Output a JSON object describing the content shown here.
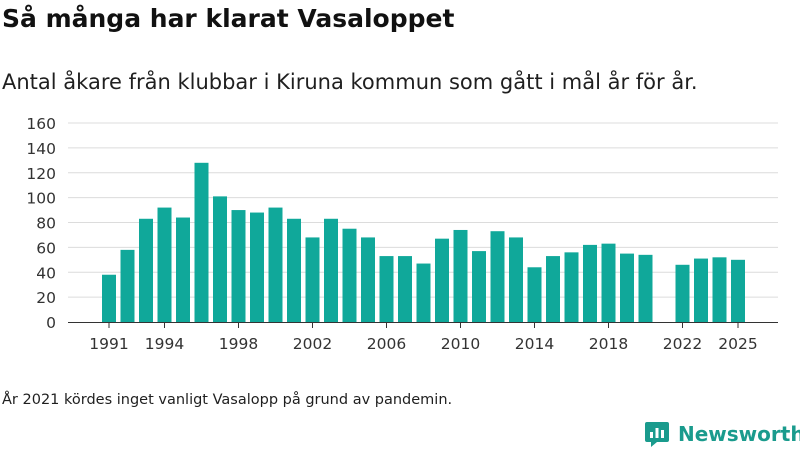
{
  "header": {
    "title": "Så många har klarat Vasaloppet",
    "subtitle": "Antal åkare från klubbar i Kiruna kommun som gått i mål år för år."
  },
  "footnote": "År 2021 kördes inget vanligt Vasalopp på grund av pandemin.",
  "brand": {
    "name": "Newsworthy",
    "icon": "newsworthy-logo-icon",
    "color": "#1a9b8d"
  },
  "chart_data": {
    "type": "bar",
    "title": "Så många har klarat Vasaloppet",
    "subtitle": "Antal åkare från klubbar i Kiruna kommun som gått i mål år för år.",
    "xlabel": "",
    "ylabel": "",
    "x": [
      1991,
      1992,
      1993,
      1994,
      1995,
      1996,
      1997,
      1998,
      1999,
      2000,
      2001,
      2002,
      2003,
      2004,
      2005,
      2006,
      2007,
      2008,
      2009,
      2010,
      2011,
      2012,
      2013,
      2014,
      2015,
      2016,
      2017,
      2018,
      2019,
      2020,
      2021,
      2022,
      2023,
      2024,
      2025
    ],
    "values": [
      38,
      58,
      83,
      92,
      84,
      128,
      101,
      90,
      88,
      92,
      83,
      68,
      83,
      75,
      68,
      53,
      53,
      47,
      67,
      74,
      57,
      73,
      68,
      44,
      53,
      56,
      62,
      63,
      55,
      54,
      null,
      46,
      51,
      52,
      50
    ],
    "x_ticks": [
      1991,
      1994,
      1998,
      2002,
      2006,
      2010,
      2014,
      2018,
      2022,
      2025
    ],
    "y_ticks": [
      0,
      20,
      40,
      60,
      80,
      100,
      120,
      140,
      160
    ],
    "ylim": [
      0,
      160
    ],
    "grid": true,
    "bar_color": "#10a89a"
  }
}
